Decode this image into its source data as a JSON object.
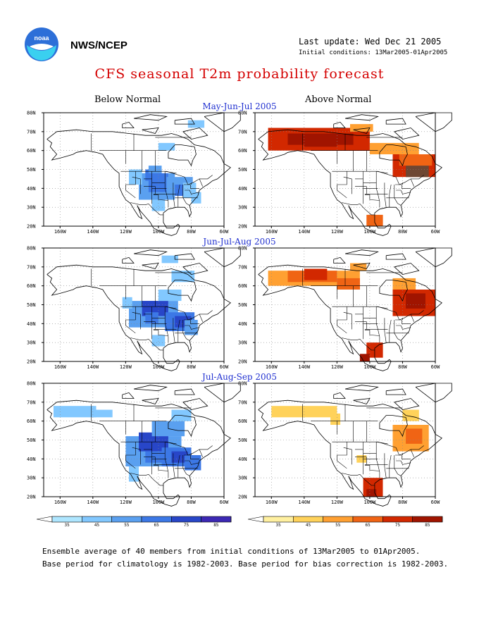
{
  "header": {
    "agency": "NWS/NCEP",
    "last_update": "Last update: Wed Dec 21 2005",
    "initial_conditions": "Initial conditions: 13Mar2005-01Apr2005",
    "logo_text": "noaa"
  },
  "title": "CFS seasonal T2m probability forecast",
  "columns": {
    "below": "Below Normal",
    "above": "Above Normal"
  },
  "seasons": [
    "May-Jun-Jul 2005",
    "Jun-Jul-Aug 2005",
    "Jul-Aug-Sep 2005"
  ],
  "axes": {
    "lat_labels": [
      "80N",
      "70N",
      "60N",
      "50N",
      "40N",
      "30N",
      "20N"
    ],
    "lon_labels": [
      "160W",
      "140W",
      "120W",
      "100W",
      "80W",
      "60W"
    ]
  },
  "colorbars": {
    "below": {
      "labels": [
        "35",
        "45",
        "55",
        "65",
        "75",
        "85"
      ],
      "colors": [
        "#ffffff",
        "#aee6ff",
        "#82c8ff",
        "#5aa0f0",
        "#3c78e6",
        "#2846c8",
        "#3c28b4",
        "#3214a0"
      ]
    },
    "above": {
      "labels": [
        "35",
        "45",
        "55",
        "65",
        "75",
        "85"
      ],
      "colors": [
        "#ffffff",
        "#fff0a0",
        "#ffd25a",
        "#ffa032",
        "#f06414",
        "#d22800",
        "#a01400",
        "#6e4632"
      ]
    }
  },
  "footer": {
    "line1": "Ensemble average of 40 members from initial conditions of 13Mar2005 to 01Apr2005.",
    "line2": "Base period for climatology is 1982-2003. Base period for bias correction is 1982-2003."
  }
}
